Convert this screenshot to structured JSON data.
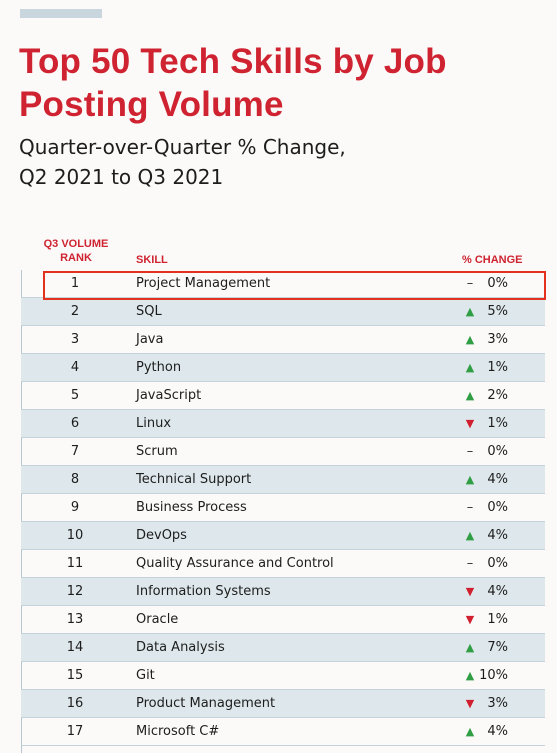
{
  "header": {
    "title": "Top 50 Tech Skills by Job Posting Volume",
    "subtitle_line1": "Quarter-over-Quarter % Change,",
    "subtitle_line2": "Q2 2021 to Q3 2021"
  },
  "colors": {
    "title": "#cf2331",
    "up": "#2f9e44",
    "down": "#d01f2e",
    "row_shade": "#dee8ec",
    "highlight": "#e2321d"
  },
  "chart_data": {
    "type": "table",
    "title": "Top 50 Tech Skills by Job Posting Volume",
    "subtitle": "Quarter-over-Quarter % Change, Q2 2021 to Q3 2021",
    "columns": [
      "Q3 VOLUME RANK",
      "SKILL",
      "% CHANGE"
    ],
    "rows": [
      {
        "rank": "1",
        "skill": "Project Management",
        "direction": "flat",
        "change": "0%"
      },
      {
        "rank": "2",
        "skill": "SQL",
        "direction": "up",
        "change": "5%"
      },
      {
        "rank": "3",
        "skill": "Java",
        "direction": "up",
        "change": "3%"
      },
      {
        "rank": "4",
        "skill": "Python",
        "direction": "up",
        "change": "1%"
      },
      {
        "rank": "5",
        "skill": "JavaScript",
        "direction": "up",
        "change": "2%"
      },
      {
        "rank": "6",
        "skill": "Linux",
        "direction": "down",
        "change": "1%"
      },
      {
        "rank": "7",
        "skill": "Scrum",
        "direction": "flat",
        "change": "0%"
      },
      {
        "rank": "8",
        "skill": "Technical Support",
        "direction": "up",
        "change": "4%"
      },
      {
        "rank": "9",
        "skill": "Business Process",
        "direction": "flat",
        "change": "0%"
      },
      {
        "rank": "10",
        "skill": "DevOps",
        "direction": "up",
        "change": "4%"
      },
      {
        "rank": "11",
        "skill": "Quality Assurance and Control",
        "direction": "flat",
        "change": "0%"
      },
      {
        "rank": "12",
        "skill": "Information Systems",
        "direction": "down",
        "change": "4%"
      },
      {
        "rank": "13",
        "skill": "Oracle",
        "direction": "down",
        "change": "1%"
      },
      {
        "rank": "14",
        "skill": "Data Analysis",
        "direction": "up",
        "change": "7%"
      },
      {
        "rank": "15",
        "skill": "Git",
        "direction": "up",
        "change": "10%"
      },
      {
        "rank": "16",
        "skill": "Product Management",
        "direction": "down",
        "change": "3%"
      },
      {
        "rank": "17",
        "skill": "Microsoft C#",
        "direction": "up",
        "change": "4%"
      }
    ],
    "highlighted_rank": "1"
  }
}
